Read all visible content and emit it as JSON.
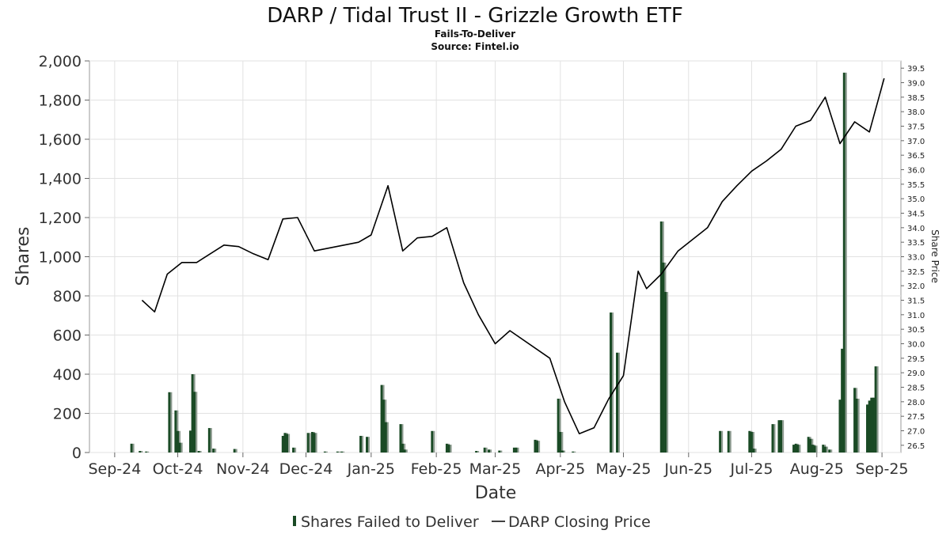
{
  "chart_data": {
    "type": "bar",
    "title": "DARP / Tidal Trust II - Grizzle Growth ETF",
    "subtitle_lines": [
      "Fails-To-Deliver",
      "Source: Fintel.io"
    ],
    "xlabel": "Date",
    "ylabel": "Shares",
    "ylabel_right": "Share Price",
    "x_tick_labels": [
      "Sep-24",
      "Oct-24",
      "Nov-24",
      "Dec-24",
      "Jan-25",
      "Feb-25",
      "Mar-25",
      "Apr-25",
      "May-25",
      "Jun-25",
      "Jul-25",
      "Aug-25",
      "Sep-25"
    ],
    "x_range": [
      "2024-08-20",
      "2025-09-10"
    ],
    "ylim": [
      0,
      2000
    ],
    "y_ticks": [
      0,
      200,
      400,
      600,
      800,
      1000,
      1200,
      1400,
      1600,
      1800,
      2000
    ],
    "ylim_right": [
      26.25,
      39.75
    ],
    "y_ticks_right": [
      26.5,
      27.0,
      27.5,
      28.0,
      28.5,
      29.0,
      29.5,
      30.0,
      30.5,
      31.0,
      31.5,
      32.0,
      32.5,
      33.0,
      33.5,
      34.0,
      34.5,
      35.0,
      35.5,
      36.0,
      36.5,
      37.0,
      37.5,
      38.0,
      38.5,
      39.0,
      39.5
    ],
    "grid": true,
    "legend_position": "bottom",
    "series": [
      {
        "name": "Shares Failed to Deliver",
        "kind": "bar",
        "color": "#1a4a25",
        "points": [
          [
            "2024-09-09",
            45
          ],
          [
            "2024-09-13",
            8
          ],
          [
            "2024-09-16",
            5
          ],
          [
            "2024-09-27",
            308
          ],
          [
            "2024-09-30",
            215
          ],
          [
            "2024-10-01",
            110
          ],
          [
            "2024-10-02",
            50
          ],
          [
            "2024-10-07",
            112
          ],
          [
            "2024-10-08",
            400
          ],
          [
            "2024-10-09",
            310
          ],
          [
            "2024-10-11",
            8
          ],
          [
            "2024-10-16",
            125
          ],
          [
            "2024-10-18",
            20
          ],
          [
            "2024-10-28",
            18
          ],
          [
            "2024-11-20",
            85
          ],
          [
            "2024-11-21",
            100
          ],
          [
            "2024-11-22",
            95
          ],
          [
            "2024-11-25",
            25
          ],
          [
            "2024-12-02",
            100
          ],
          [
            "2024-12-04",
            105
          ],
          [
            "2024-12-05",
            100
          ],
          [
            "2024-12-10",
            5
          ],
          [
            "2024-12-16",
            5
          ],
          [
            "2024-12-18",
            5
          ],
          [
            "2024-12-27",
            85
          ],
          [
            "2024-12-30",
            80
          ],
          [
            "2025-01-06",
            345
          ],
          [
            "2025-01-07",
            270
          ],
          [
            "2025-01-08",
            155
          ],
          [
            "2025-01-15",
            145
          ],
          [
            "2025-01-16",
            45
          ],
          [
            "2025-01-17",
            15
          ],
          [
            "2025-01-30",
            110
          ],
          [
            "2025-02-06",
            45
          ],
          [
            "2025-02-07",
            40
          ],
          [
            "2025-02-20",
            8
          ],
          [
            "2025-02-24",
            25
          ],
          [
            "2025-02-26",
            15
          ],
          [
            "2025-03-03",
            10
          ],
          [
            "2025-03-10",
            25
          ],
          [
            "2025-03-11",
            25
          ],
          [
            "2025-03-20",
            65
          ],
          [
            "2025-03-21",
            60
          ],
          [
            "2025-03-31",
            275
          ],
          [
            "2025-04-01",
            105
          ],
          [
            "2025-04-02",
            10
          ],
          [
            "2025-04-07",
            5
          ],
          [
            "2025-04-25",
            715
          ],
          [
            "2025-04-28",
            510
          ],
          [
            "2025-05-19",
            1180
          ],
          [
            "2025-05-20",
            970
          ],
          [
            "2025-05-21",
            820
          ],
          [
            "2025-06-16",
            110
          ],
          [
            "2025-06-20",
            110
          ],
          [
            "2025-06-30",
            110
          ],
          [
            "2025-07-01",
            105
          ],
          [
            "2025-07-02",
            20
          ],
          [
            "2025-07-11",
            145
          ],
          [
            "2025-07-14",
            165
          ],
          [
            "2025-07-15",
            165
          ],
          [
            "2025-07-21",
            40
          ],
          [
            "2025-07-22",
            45
          ],
          [
            "2025-07-23",
            40
          ],
          [
            "2025-07-28",
            80
          ],
          [
            "2025-07-29",
            70
          ],
          [
            "2025-07-30",
            40
          ],
          [
            "2025-07-31",
            35
          ],
          [
            "2025-08-04",
            40
          ],
          [
            "2025-08-05",
            30
          ],
          [
            "2025-08-07",
            15
          ],
          [
            "2025-08-12",
            270
          ],
          [
            "2025-08-13",
            530
          ],
          [
            "2025-08-14",
            1940
          ],
          [
            "2025-08-19",
            330
          ],
          [
            "2025-08-20",
            275
          ],
          [
            "2025-08-25",
            245
          ],
          [
            "2025-08-26",
            265
          ],
          [
            "2025-08-27",
            280
          ],
          [
            "2025-08-28",
            280
          ],
          [
            "2025-08-29",
            440
          ]
        ]
      },
      {
        "name": "DARP Closing Price",
        "kind": "line",
        "axis": "right",
        "color": "#000000",
        "points": [
          [
            "2024-09-14",
            31.5
          ],
          [
            "2024-09-20",
            31.1
          ],
          [
            "2024-09-26",
            32.4
          ],
          [
            "2024-10-03",
            32.8
          ],
          [
            "2024-10-10",
            32.8
          ],
          [
            "2024-10-23",
            33.4
          ],
          [
            "2024-10-30",
            33.35
          ],
          [
            "2024-11-06",
            33.1
          ],
          [
            "2024-11-13",
            32.9
          ],
          [
            "2024-11-20",
            34.3
          ],
          [
            "2024-11-27",
            34.35
          ],
          [
            "2024-12-05",
            33.2
          ],
          [
            "2024-12-26",
            33.5
          ],
          [
            "2025-01-01",
            33.75
          ],
          [
            "2025-01-09",
            35.45
          ],
          [
            "2025-01-16",
            33.2
          ],
          [
            "2025-01-23",
            33.65
          ],
          [
            "2025-01-30",
            33.7
          ],
          [
            "2025-02-06",
            34.0
          ],
          [
            "2025-02-14",
            32.1
          ],
          [
            "2025-02-21",
            31.0
          ],
          [
            "2025-03-01",
            30.0
          ],
          [
            "2025-03-08",
            30.45
          ],
          [
            "2025-03-27",
            29.5
          ],
          [
            "2025-04-03",
            28.0
          ],
          [
            "2025-04-10",
            26.9
          ],
          [
            "2025-04-17",
            27.1
          ],
          [
            "2025-04-24",
            28.1
          ],
          [
            "2025-05-01",
            28.9
          ],
          [
            "2025-05-08",
            32.5
          ],
          [
            "2025-05-12",
            31.9
          ],
          [
            "2025-05-19",
            32.4
          ],
          [
            "2025-05-27",
            33.2
          ],
          [
            "2025-06-03",
            33.6
          ],
          [
            "2025-06-10",
            34.0
          ],
          [
            "2025-06-17",
            34.9
          ],
          [
            "2025-06-24",
            35.45
          ],
          [
            "2025-07-01",
            35.95
          ],
          [
            "2025-07-08",
            36.3
          ],
          [
            "2025-07-15",
            36.7
          ],
          [
            "2025-07-22",
            37.5
          ],
          [
            "2025-07-29",
            37.7
          ],
          [
            "2025-08-05",
            38.5
          ],
          [
            "2025-08-12",
            36.9
          ],
          [
            "2025-08-19",
            37.65
          ],
          [
            "2025-08-26",
            37.3
          ],
          [
            "2025-09-02",
            39.15
          ]
        ]
      }
    ]
  }
}
